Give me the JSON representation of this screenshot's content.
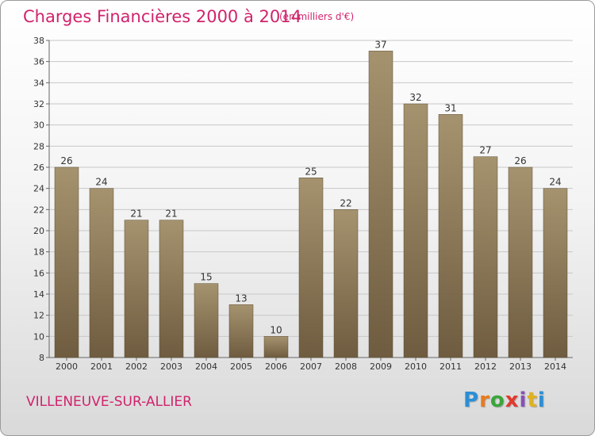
{
  "header": {
    "title": "Charges Financières 2000 à 2014",
    "unit": "(en milliers d'€)"
  },
  "footer": {
    "location": "VILLENEUVE-SUR-ALLIER",
    "logo_text": "Proxiti"
  },
  "colors": {
    "title": "#d0236c",
    "bar_top": "#a5936f",
    "bar_bottom": "#6f5c40",
    "grid": "#c8c8c8"
  },
  "chart_data": {
    "type": "bar",
    "title": "Charges Financières 2000 à 2014",
    "subtitle": "(en milliers d'€)",
    "xlabel": "",
    "ylabel": "",
    "categories": [
      "2000",
      "2001",
      "2002",
      "2003",
      "2004",
      "2005",
      "2006",
      "2007",
      "2008",
      "2009",
      "2010",
      "2011",
      "2012",
      "2013",
      "2014"
    ],
    "values": [
      26,
      24,
      21,
      21,
      15,
      13,
      10,
      25,
      22,
      37,
      32,
      31,
      27,
      26,
      24
    ],
    "ylim": [
      8,
      38
    ],
    "yticks": [
      8,
      10,
      12,
      14,
      16,
      18,
      20,
      22,
      24,
      26,
      28,
      30,
      32,
      34,
      36,
      38
    ],
    "grid": true,
    "data_labels": true
  }
}
